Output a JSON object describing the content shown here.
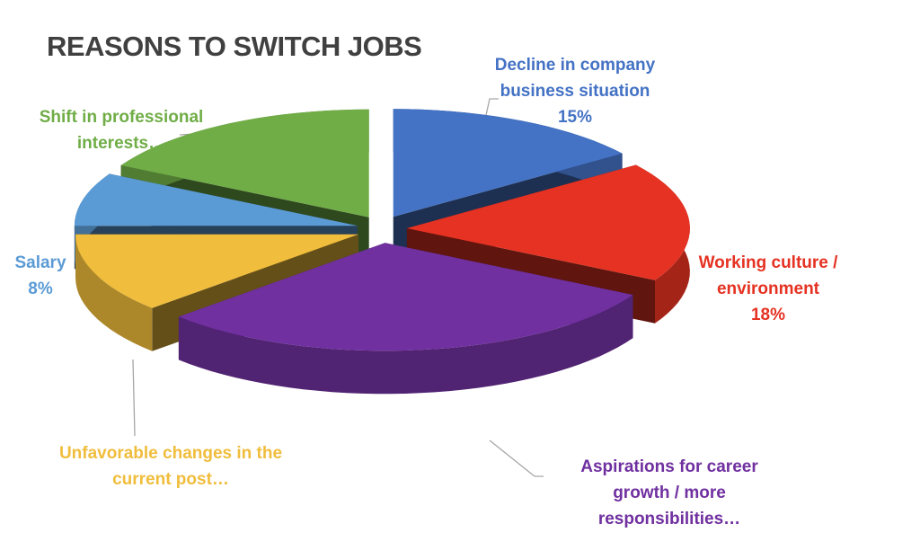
{
  "chart_data": {
    "type": "pie3d",
    "title": "REASONS TO SWITCH JOBS",
    "categories": [
      "Decline in company business situation",
      "Working culture / environment",
      "Aspirations for career growth / more responsibilities…",
      "Unfavorable changes in the current post…",
      "Salary",
      "Shift in professional interests…"
    ],
    "values": [
      15,
      18,
      30,
      12,
      8,
      17
    ],
    "value_labels": [
      "15%",
      "18%",
      null,
      null,
      "8%",
      null
    ],
    "colors": [
      "#4472c4",
      "#e53222",
      "#7030a0",
      "#f0bd3c",
      "#5b9bd5",
      "#70ad47"
    ]
  }
}
